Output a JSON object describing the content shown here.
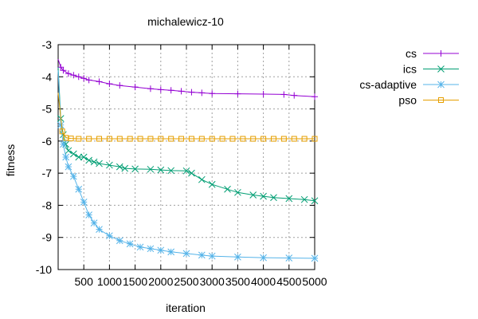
{
  "chart_data": {
    "type": "line",
    "title": "michalewicz-10",
    "xlabel": "iteration",
    "ylabel": "fitness",
    "xlim": [
      0,
      5000
    ],
    "ylim": [
      -10,
      -3
    ],
    "xticks": [
      "500",
      "1000",
      "1500",
      "2000",
      "2500",
      "3000",
      "3500",
      "4000",
      "4500",
      "5000"
    ],
    "yticks": [
      "-3",
      "-4",
      "-5",
      "-6",
      "-7",
      "-8",
      "-9",
      "-10"
    ],
    "grid": true,
    "legend_position": "right",
    "series": [
      {
        "name": "cs",
        "color": "#9400d3",
        "marker": "plus",
        "x": [
          0,
          50,
          100,
          200,
          300,
          400,
          500,
          600,
          800,
          1000,
          1200,
          1500,
          1800,
          2000,
          2200,
          2400,
          2600,
          2800,
          3000,
          3500,
          4000,
          4400,
          4600,
          5000
        ],
        "y": [
          -3.45,
          -3.7,
          -3.8,
          -3.9,
          -3.95,
          -4.0,
          -4.05,
          -4.1,
          -4.15,
          -4.22,
          -4.27,
          -4.32,
          -4.37,
          -4.4,
          -4.42,
          -4.45,
          -4.48,
          -4.5,
          -4.52,
          -4.53,
          -4.54,
          -4.55,
          -4.58,
          -4.62
        ]
      },
      {
        "name": "ics",
        "color": "#009e73",
        "marker": "cross",
        "x": [
          0,
          50,
          100,
          150,
          200,
          300,
          400,
          500,
          600,
          700,
          800,
          1000,
          1200,
          1300,
          1500,
          1800,
          2000,
          2200,
          2500,
          2600,
          2800,
          3000,
          3300,
          3500,
          3800,
          4000,
          4200,
          4500,
          4800,
          5000
        ],
        "y": [
          -3.7,
          -5.3,
          -5.8,
          -6.1,
          -6.3,
          -6.4,
          -6.5,
          -6.5,
          -6.6,
          -6.65,
          -6.7,
          -6.75,
          -6.8,
          -6.85,
          -6.87,
          -6.88,
          -6.9,
          -6.92,
          -6.93,
          -7.0,
          -7.2,
          -7.35,
          -7.5,
          -7.6,
          -7.68,
          -7.72,
          -7.76,
          -7.79,
          -7.82,
          -7.86
        ]
      },
      {
        "name": "cs-adaptive",
        "color": "#56b4e9",
        "marker": "star",
        "x": [
          0,
          50,
          100,
          150,
          200,
          300,
          400,
          500,
          600,
          700,
          800,
          1000,
          1200,
          1400,
          1600,
          1800,
          2000,
          2200,
          2500,
          2800,
          3000,
          3500,
          4000,
          4500,
          5000
        ],
        "y": [
          -3.8,
          -5.5,
          -6.1,
          -6.5,
          -6.8,
          -7.1,
          -7.5,
          -7.9,
          -8.3,
          -8.55,
          -8.75,
          -8.95,
          -9.1,
          -9.2,
          -9.3,
          -9.35,
          -9.4,
          -9.45,
          -9.5,
          -9.55,
          -9.58,
          -9.61,
          -9.63,
          -9.64,
          -9.65
        ]
      },
      {
        "name": "pso",
        "color": "#e69f00",
        "marker": "square",
        "x": [
          0,
          80,
          150,
          250,
          400,
          600,
          800,
          1000,
          1200,
          1400,
          1600,
          1800,
          2000,
          2200,
          2400,
          2600,
          2800,
          3000,
          3200,
          3400,
          3600,
          3800,
          4000,
          4200,
          4400,
          4600,
          4800,
          5000
        ],
        "y": [
          -4.5,
          -5.7,
          -5.9,
          -5.92,
          -5.93,
          -5.93,
          -5.93,
          -5.93,
          -5.93,
          -5.93,
          -5.93,
          -5.93,
          -5.93,
          -5.93,
          -5.93,
          -5.93,
          -5.93,
          -5.93,
          -5.93,
          -5.93,
          -5.93,
          -5.93,
          -5.93,
          -5.93,
          -5.93,
          -5.93,
          -5.93,
          -5.93
        ]
      }
    ]
  }
}
